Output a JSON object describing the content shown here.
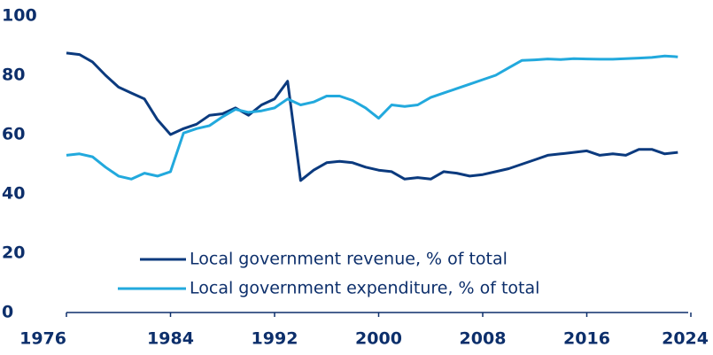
{
  "chart_data": {
    "type": "line",
    "x": [
      1976,
      1977,
      1978,
      1979,
      1980,
      1981,
      1982,
      1983,
      1984,
      1985,
      1986,
      1987,
      1988,
      1989,
      1990,
      1991,
      1992,
      1993,
      1994,
      1995,
      1996,
      1997,
      1998,
      1999,
      2000,
      2001,
      2002,
      2003,
      2004,
      2005,
      2006,
      2007,
      2008,
      2009,
      2010,
      2011,
      2012,
      2013,
      2014,
      2015,
      2016,
      2017,
      2018,
      2019,
      2020,
      2021,
      2022,
      2023
    ],
    "series": [
      {
        "name": "Local government revenue, % of total",
        "color": "#0b3a7e",
        "values": [
          87.5,
          87,
          84.5,
          80,
          76,
          74,
          72,
          65,
          60,
          62,
          63.5,
          66.5,
          67,
          69,
          66.5,
          70,
          72,
          78,
          44.5,
          48,
          50.5,
          51,
          50.5,
          49,
          48,
          47.5,
          45,
          45.5,
          45,
          47.5,
          47,
          46,
          46.5,
          47.5,
          48.5,
          50,
          51.5,
          53,
          53.5,
          54,
          54.5,
          53,
          53.5,
          53,
          55,
          55,
          53.5,
          54
        ]
      },
      {
        "name": "Local government expenditure, % of total",
        "color": "#22a9dd",
        "values": [
          53,
          53.5,
          52.5,
          49,
          46,
          45,
          47,
          46,
          47.5,
          60.5,
          62,
          63,
          66,
          68.5,
          67.5,
          68,
          69,
          72,
          70,
          71,
          73,
          73,
          71.5,
          69,
          65.5,
          70,
          69.5,
          70,
          72.5,
          74,
          75.5,
          77,
          78.5,
          80,
          82.5,
          85,
          85.2,
          85.5,
          85.3,
          85.6,
          85.5,
          85.4,
          85.4,
          85.6,
          85.8,
          86,
          86.5,
          86.2
        ]
      }
    ],
    "xlim": [
      1976,
      2024
    ],
    "xticks": [
      1976,
      1984,
      1992,
      2000,
      2008,
      2016,
      2024
    ],
    "ylim": [
      0,
      100
    ],
    "yticks": [
      0,
      20,
      40,
      60,
      80,
      100
    ],
    "grid": false
  }
}
